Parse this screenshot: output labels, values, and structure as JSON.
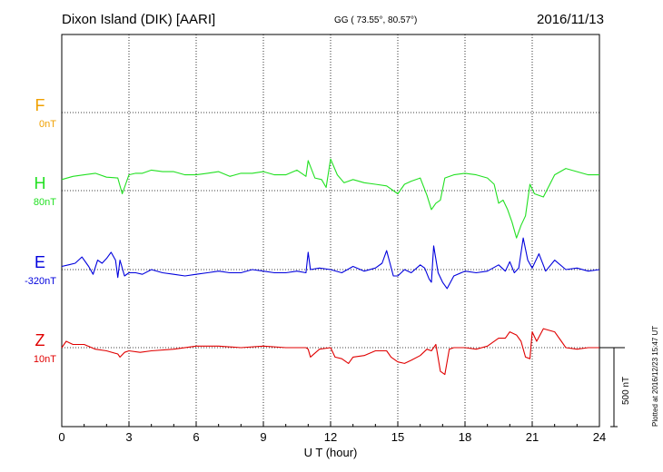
{
  "header": {
    "station": "Dixon Island (DIK)  [AARI]",
    "coords": "GG ( 73.55°,  80.57°)",
    "date": "2016/11/13"
  },
  "side_note": "Plotted at 2016/12/23 15:47 UT",
  "colors": {
    "F": "#f0a000",
    "H": "#22e022",
    "E": "#0000dd",
    "Z": "#e00000",
    "axis": "#000000",
    "grid": "#000000"
  },
  "chart_data": {
    "type": "line",
    "xlabel": "U T (hour)",
    "xlim": [
      0,
      24
    ],
    "xticks": [
      0,
      3,
      6,
      9,
      12,
      15,
      18,
      21,
      24
    ],
    "scale_bar": {
      "label": "500 nT",
      "value": 500
    },
    "series": [
      {
        "name": "F",
        "offset_label": "0nT",
        "has_data": false,
        "x": [],
        "y": []
      },
      {
        "name": "H",
        "offset_label": "80nT",
        "x": [
          0,
          0.5,
          1,
          1.5,
          2,
          2.5,
          2.7,
          3,
          3.3,
          3.6,
          4,
          4.5,
          5,
          5.5,
          6,
          6.5,
          7,
          7.5,
          8,
          8.5,
          9,
          9.5,
          10,
          10.5,
          10.9,
          11,
          11.3,
          11.6,
          11.8,
          12,
          12.3,
          12.6,
          13,
          13.5,
          14,
          14.5,
          15,
          15.3,
          15.6,
          16,
          16.3,
          16.5,
          16.7,
          16.9,
          17.1,
          17.5,
          18,
          18.5,
          19,
          19.3,
          19.5,
          19.7,
          19.9,
          20.1,
          20.3,
          20.5,
          20.7,
          20.9,
          21.1,
          21.5,
          22,
          22.5,
          23,
          23.5,
          24
        ],
        "y": [
          70,
          90,
          100,
          110,
          85,
          80,
          -20,
          100,
          110,
          110,
          130,
          120,
          120,
          100,
          100,
          110,
          120,
          90,
          110,
          110,
          120,
          100,
          100,
          130,
          90,
          190,
          80,
          70,
          20,
          200,
          100,
          50,
          70,
          50,
          40,
          30,
          -20,
          40,
          60,
          80,
          -30,
          -120,
          -80,
          -60,
          80,
          100,
          110,
          100,
          80,
          40,
          -80,
          -60,
          -120,
          -200,
          -300,
          -220,
          -160,
          40,
          -20,
          -40,
          100,
          140,
          120,
          100,
          100
        ]
      },
      {
        "name": "E",
        "offset_label": "-320nT",
        "x": [
          0,
          0.3,
          0.6,
          0.9,
          1.2,
          1.4,
          1.6,
          1.8,
          2.0,
          2.2,
          2.4,
          2.5,
          2.6,
          2.8,
          3.0,
          3.3,
          3.6,
          4.0,
          4.5,
          5.0,
          5.5,
          6.0,
          6.5,
          7.0,
          7.5,
          8.0,
          8.5,
          9.0,
          9.5,
          10.0,
          10.5,
          10.9,
          11.0,
          11.1,
          11.5,
          12.0,
          12.5,
          13.0,
          13.5,
          14.0,
          14.3,
          14.5,
          14.8,
          15.0,
          15.3,
          15.6,
          16.0,
          16.2,
          16.4,
          16.5,
          16.6,
          16.8,
          17.0,
          17.2,
          17.5,
          18.0,
          18.5,
          19.0,
          19.5,
          19.8,
          20.0,
          20.2,
          20.4,
          20.6,
          20.8,
          21.0,
          21.3,
          21.6,
          22.0,
          22.5,
          23.0,
          23.5,
          24
        ],
        "y": [
          20,
          30,
          40,
          80,
          20,
          -30,
          60,
          40,
          70,
          110,
          60,
          -50,
          60,
          -40,
          -20,
          -20,
          -30,
          0,
          -20,
          -30,
          -40,
          -30,
          -20,
          -10,
          -20,
          -20,
          0,
          -10,
          -20,
          -20,
          -10,
          -20,
          110,
          0,
          10,
          0,
          -20,
          20,
          -10,
          10,
          40,
          120,
          -40,
          -40,
          0,
          -20,
          30,
          10,
          -60,
          -80,
          150,
          -20,
          -80,
          -120,
          -40,
          -10,
          -20,
          -10,
          30,
          -10,
          50,
          -20,
          10,
          200,
          60,
          10,
          100,
          -10,
          60,
          0,
          10,
          -10,
          0
        ]
      },
      {
        "name": "Z",
        "offset_label": "10nT",
        "x": [
          0,
          0.2,
          0.5,
          1,
          1.5,
          2,
          2.5,
          2.6,
          2.8,
          3,
          3.5,
          4,
          5,
          6,
          7,
          8,
          9,
          10,
          10.9,
          11,
          11.1,
          11.5,
          12,
          12.2,
          12.5,
          12.8,
          13,
          13.5,
          14,
          14.5,
          14.7,
          15,
          15.3,
          15.6,
          16,
          16.3,
          16.5,
          16.7,
          16.9,
          17.1,
          17.3,
          17.5,
          18,
          18.5,
          19,
          19.5,
          19.8,
          20,
          20.3,
          20.5,
          20.7,
          20.9,
          21,
          21.2,
          21.5,
          22,
          22.3,
          22.5,
          23,
          23.5,
          24
        ],
        "y": [
          0,
          40,
          20,
          20,
          -10,
          -20,
          -40,
          -60,
          -30,
          -20,
          -30,
          -20,
          -10,
          10,
          10,
          0,
          10,
          0,
          0,
          -10,
          -60,
          -10,
          0,
          -60,
          -70,
          -100,
          -60,
          -50,
          -20,
          -20,
          -60,
          -90,
          -100,
          -80,
          -50,
          -10,
          -20,
          20,
          -150,
          -170,
          -10,
          0,
          0,
          -10,
          10,
          60,
          60,
          100,
          80,
          40,
          -60,
          -70,
          100,
          40,
          120,
          100,
          40,
          0,
          -10,
          0,
          0
        ]
      }
    ]
  }
}
